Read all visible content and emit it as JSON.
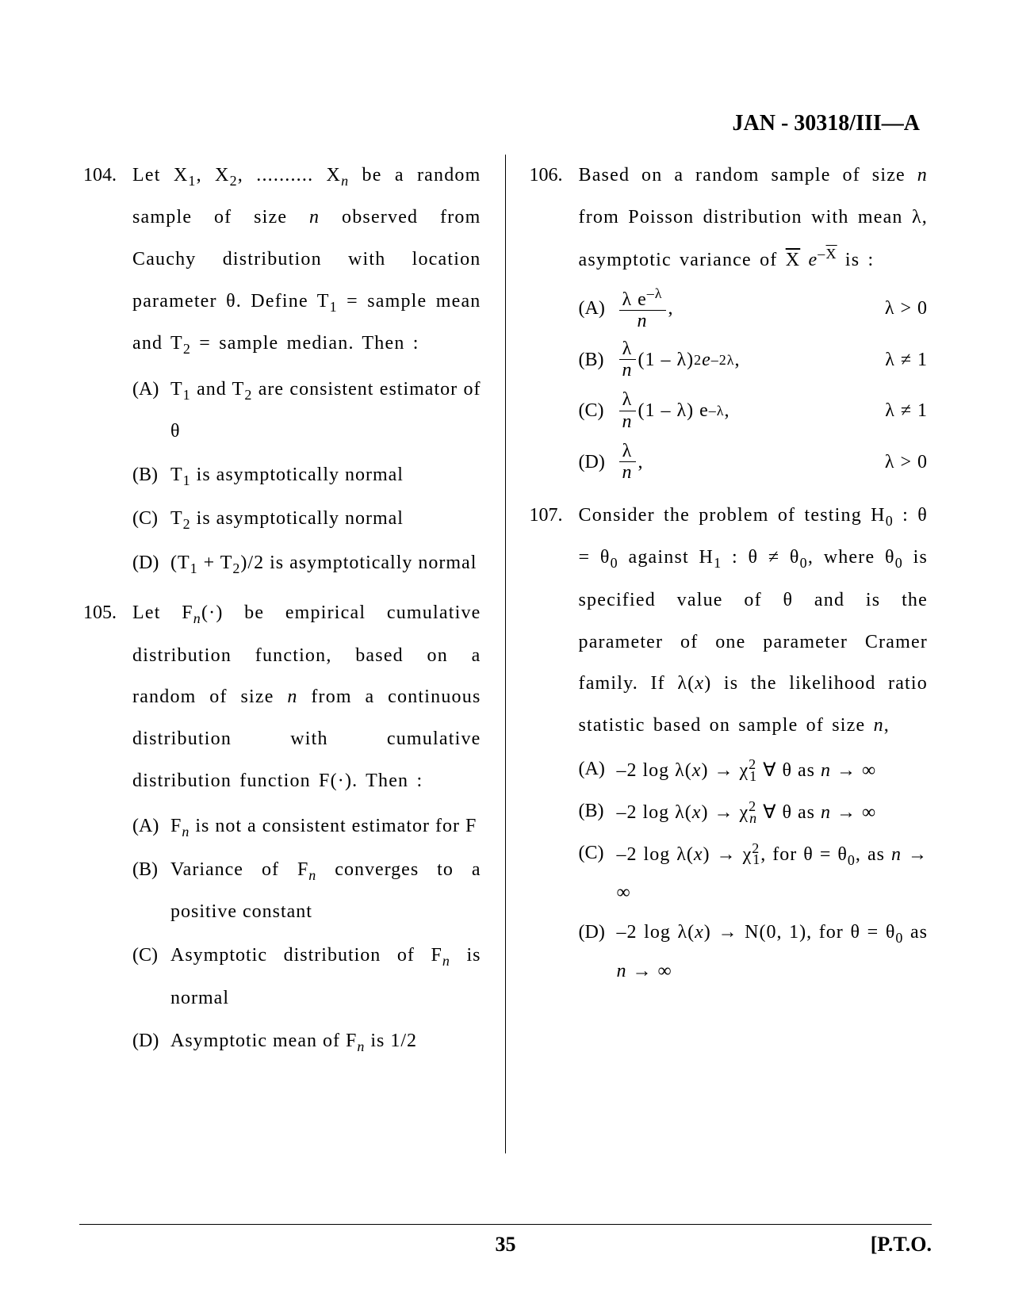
{
  "header": "JAN - 30318/III—A",
  "page_number": "35",
  "pto": "[P.T.O.",
  "q104": {
    "num": "104.",
    "text_parts": [
      "Let X",
      ", X",
      ", .......... X",
      " be a random sample of size ",
      " observed from Cauchy distribution with location parameter θ. Define T",
      " = sample mean and  T",
      " = sample median. Then :"
    ],
    "optA_label": "(A)",
    "optA": [
      "T",
      " and T",
      " are consistent estimator of θ"
    ],
    "optB_label": "(B)",
    "optB": [
      "T",
      " is asymptotically normal"
    ],
    "optC_label": "(C)",
    "optC": [
      "T",
      " is asymptotically normal"
    ],
    "optD_label": "(D)",
    "optD": [
      "(T",
      " + T",
      ")/2 is asymptotically normal"
    ]
  },
  "q105": {
    "num": "105.",
    "text_parts": [
      "Let F",
      "(·) be empirical cumulative distribution function, based on a random of size ",
      " from a continuous distribution with cumulative distribution function F(·). Then :"
    ],
    "optA_label": "(A)",
    "optA": [
      "F",
      " is not a consistent estimator for F"
    ],
    "optB_label": "(B)",
    "optB": [
      "Variance of F",
      " converges to a positive constant"
    ],
    "optC_label": "(C)",
    "optC": [
      "Asymptotic distribution of F",
      " is normal"
    ],
    "optD_label": "(D)",
    "optD": [
      "Asymptotic mean of F",
      " is 1/2"
    ]
  },
  "q106": {
    "num": "106.",
    "text_parts": [
      "Based on a random sample of size ",
      " from Poisson distribution with mean λ, asymptotic variance of ",
      " is :"
    ],
    "xbar_e": "X̄ e",
    "neg_xbar": "–X̄",
    "optA_label": "(A)",
    "optA_num": "λ e",
    "optA_exp": "–λ",
    "optA_den": "n",
    "optA_cond": "λ > 0",
    "optB_label": "(B)",
    "optB_frac_num": "λ",
    "optB_frac_den": "n",
    "optB_mid": "(1 – λ)",
    "optB_sq": "2",
    "optB_e": " e",
    "optB_exp": "–2λ",
    "optB_comma": ",",
    "optB_cond": "λ ≠ 1",
    "optC_label": "(C)",
    "optC_frac_num": "λ",
    "optC_frac_den": "n",
    "optC_mid": "(1 – λ) e",
    "optC_exp": "–λ",
    "optC_comma": ",",
    "optC_cond": "λ ≠ 1",
    "optD_label": "(D)",
    "optD_num": "λ",
    "optD_den": "n",
    "optD_comma": ",",
    "optD_cond": "λ > 0"
  },
  "q107": {
    "num": "107.",
    "text_parts": [
      "Consider the problem of testing H",
      " : θ = θ",
      " against H",
      " : θ ≠ θ",
      ", where θ",
      " is specified value of θ and is the parameter of one parameter Cramer family. If λ(",
      ") is the likelihood ratio statistic based on sample of size ",
      ","
    ],
    "optA_label": "(A)",
    "optA": [
      "–2 log λ(",
      ") → χ",
      "  ∀ θ as ",
      " → ∞"
    ],
    "optB_label": "(B)",
    "optB": [
      "–2 log λ(",
      ") → χ",
      "  ∀ θ as ",
      " → ∞"
    ],
    "optC_label": "(C)",
    "optC": [
      "–2 log λ(",
      ") → χ",
      ", for θ = θ",
      ", as ",
      " → ∞"
    ],
    "optD_label": "(D)",
    "optD": [
      "–2 log λ(",
      ") → N(0, 1), for θ = θ",
      " as ",
      " → ∞"
    ]
  }
}
